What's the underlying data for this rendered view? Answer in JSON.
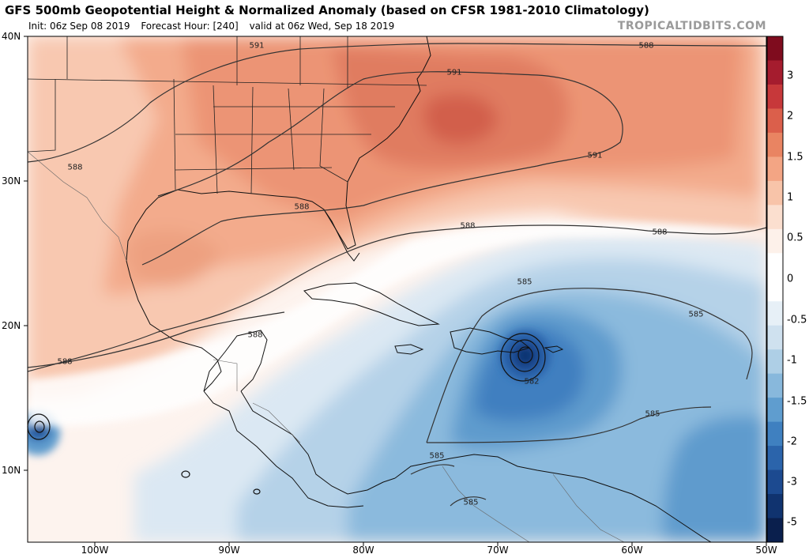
{
  "header": {
    "title": "GFS 500mb Geopotential Height & Normalized Anomaly (based on CFSR 1981-2010 Climatology)",
    "init": "Init: 06z Sep 08 2019",
    "forecast_hour": "Forecast Hour: [240]",
    "valid": "valid at 06z Wed, Sep 18 2019",
    "credit": "TROPICALTIDBITS.COM"
  },
  "axes": {
    "lat_labels": [
      "40N",
      "30N",
      "20N",
      "10N"
    ],
    "lon_labels": [
      "100W",
      "90W",
      "80W",
      "70W",
      "60W",
      "50W"
    ]
  },
  "colorbar": {
    "labels": [
      "3",
      "2",
      "1.5",
      "1",
      "0.5",
      "0",
      "-0.5",
      "-1",
      "-1.5",
      "-2",
      "-3",
      "-5"
    ],
    "colors": [
      "#7f0c1e",
      "#a51c2e",
      "#c7383a",
      "#db5f4b",
      "#e98462",
      "#f3a584",
      "#f8c4a9",
      "#fbdfcf",
      "#fdf1ea",
      "#ffffff",
      "#ffffff",
      "#e7f0f7",
      "#cfe1ef",
      "#aecfe6",
      "#88b8dc",
      "#5f9dcf",
      "#3f80c0",
      "#2b64ab",
      "#1c4a90",
      "#10336f",
      "#0a1f4d"
    ]
  },
  "contours": {
    "labels": [
      "588",
      "591",
      "591",
      "591",
      "588",
      "588",
      "588",
      "588",
      "588",
      "588",
      "585",
      "585",
      "582",
      "585",
      "585",
      "585"
    ]
  }
}
